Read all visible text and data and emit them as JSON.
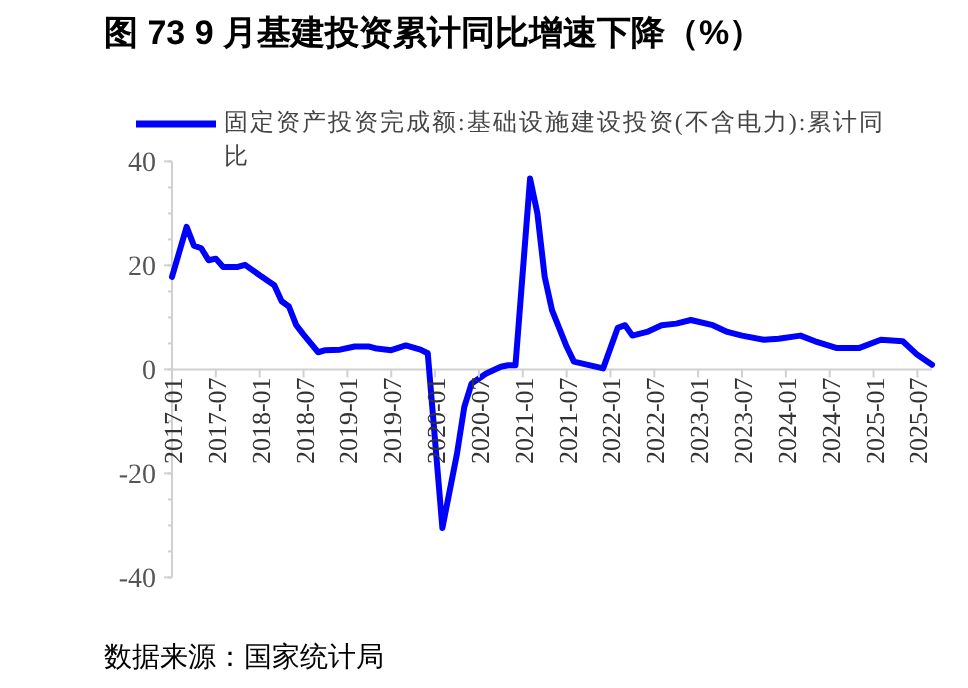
{
  "chart_data": {
    "type": "line",
    "title": "图 73 9 月基建投资累计同比增速下降（%）",
    "x": [
      "2017-01",
      "2017-03",
      "2017-04",
      "2017-05",
      "2017-06",
      "2017-07",
      "2017-08",
      "2017-10",
      "2017-11",
      "2018-01",
      "2018-03",
      "2018-04",
      "2018-05",
      "2018-06",
      "2018-07",
      "2018-09",
      "2018-10",
      "2018-12",
      "2019-02",
      "2019-04",
      "2019-05",
      "2019-07",
      "2019-09",
      "2019-11",
      "2019-12",
      "2020-02",
      "2020-04",
      "2020-05",
      "2020-06",
      "2020-08",
      "2020-10",
      "2020-11",
      "2020-12",
      "2021-02",
      "2021-03",
      "2021-04",
      "2021-05",
      "2021-07",
      "2021-08",
      "2021-12",
      "2022-02",
      "2022-03",
      "2022-04",
      "2022-06",
      "2022-08",
      "2022-10",
      "2022-12",
      "2023-03",
      "2023-05",
      "2023-07",
      "2023-10",
      "2023-12",
      "2024-03",
      "2024-05",
      "2024-08",
      "2024-11",
      "2025-02",
      "2025-05",
      "2025-07",
      "2025-09"
    ],
    "series": [
      {
        "name": "固定资产投资完成额:基础设施建设投资(不含电力):累计同比",
        "color": "#0000ff",
        "values": [
          17.8,
          27.4,
          23.8,
          23.3,
          21.0,
          21.3,
          19.7,
          19.7,
          20.1,
          18.1,
          16.2,
          13.1,
          12.1,
          8.5,
          6.7,
          3.3,
          3.7,
          3.8,
          4.4,
          4.4,
          4.0,
          3.7,
          4.6,
          3.8,
          3.1,
          -30.5,
          -16.2,
          -7.2,
          -2.7,
          -0.8,
          0.5,
          0.8,
          0.8,
          36.7,
          30.0,
          17.8,
          11.4,
          4.4,
          1.5,
          0.2,
          8.0,
          8.5,
          6.5,
          7.2,
          8.5,
          8.8,
          9.5,
          8.5,
          7.2,
          6.5,
          5.7,
          5.9,
          6.5,
          5.4,
          4.1,
          4.1,
          5.7,
          5.4,
          2.8,
          0.9
        ]
      }
    ],
    "xlim": [
      "2017-01",
      "2025-09"
    ],
    "xticks": [
      "2017-01",
      "2017-07",
      "2018-01",
      "2018-07",
      "2019-01",
      "2019-07",
      "2020-01",
      "2020-07",
      "2021-01",
      "2021-07",
      "2022-01",
      "2022-07",
      "2023-01",
      "2023-07",
      "2024-01",
      "2024-07",
      "2025-01",
      "2025-07"
    ],
    "ylim": [
      -40,
      40
    ],
    "yticks": [
      -40,
      -20,
      0,
      20,
      40
    ],
    "legend": "top left",
    "annotations": [
      "数据来源：国家统计局"
    ]
  }
}
